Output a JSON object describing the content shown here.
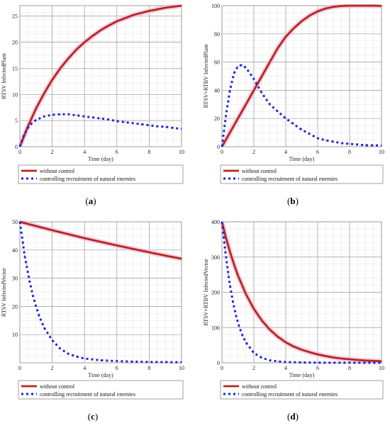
{
  "chart_data": [
    {
      "type": "line",
      "panel_label": "a",
      "ylabel": "RTSV InfectedPlant",
      "xlabel": "Time (day)",
      "xlim": [
        0,
        10
      ],
      "ylim": [
        0,
        27
      ],
      "xticks": [
        0,
        2,
        4,
        6,
        8,
        10
      ],
      "yticks": [
        0,
        5,
        10,
        15,
        20,
        25
      ],
      "grid": true,
      "legend_position": "below",
      "series": [
        {
          "name": "without control",
          "color": "#b5281e",
          "style": "solid",
          "x": [
            0,
            0.5,
            1,
            1.5,
            2,
            2.5,
            3,
            3.5,
            4,
            4.5,
            5,
            5.5,
            6,
            6.5,
            7,
            7.5,
            8,
            8.5,
            9,
            9.5,
            10
          ],
          "y": [
            0,
            3.9,
            7.3,
            10.2,
            12.8,
            15.0,
            16.9,
            18.6,
            20.0,
            21.2,
            22.3,
            23.2,
            24.0,
            24.6,
            25.2,
            25.6,
            26.0,
            26.3,
            26.6,
            26.8,
            27.0
          ]
        },
        {
          "name": "controlling recruitment of natural enemies",
          "color": "#1f25d6",
          "style": "dotted",
          "x": [
            0,
            0.25,
            0.5,
            0.75,
            1,
            1.5,
            2,
            2.5,
            3,
            3.5,
            4,
            4.5,
            5,
            5.5,
            6,
            6.5,
            7,
            7.5,
            8,
            8.5,
            9,
            9.5,
            10
          ],
          "y": [
            0,
            2.2,
            3.6,
            4.5,
            5.1,
            5.8,
            6.1,
            6.2,
            6.2,
            6.0,
            5.8,
            5.6,
            5.4,
            5.2,
            4.9,
            4.7,
            4.5,
            4.3,
            4.1,
            3.9,
            3.8,
            3.6,
            3.4
          ]
        }
      ]
    },
    {
      "type": "line",
      "panel_label": "b",
      "ylabel": "RTSV+RTBV InfectedPlant",
      "xlabel": "Time (day)",
      "xlim": [
        0,
        10
      ],
      "ylim": [
        0,
        100
      ],
      "xticks": [
        0,
        2,
        4,
        6,
        8,
        10
      ],
      "yticks": [
        0,
        20,
        40,
        60,
        80,
        100
      ],
      "grid": true,
      "legend_position": "below",
      "series": [
        {
          "name": "without control",
          "color": "#b5281e",
          "style": "solid",
          "x": [
            0,
            0.5,
            1,
            1.5,
            2,
            2.5,
            3,
            3.5,
            4,
            4.5,
            5,
            5.5,
            6,
            6.5,
            7,
            7.5,
            8,
            8.5,
            9,
            9.5,
            10
          ],
          "y": [
            0,
            10,
            20,
            30,
            40,
            50,
            60,
            70,
            78,
            84,
            89,
            93,
            96,
            98,
            99.2,
            99.8,
            100,
            100,
            100,
            100,
            99.8
          ]
        },
        {
          "name": "controlling recruitment of natural enemies",
          "color": "#1f25d6",
          "style": "dotted",
          "x": [
            0,
            0.25,
            0.5,
            0.75,
            1,
            1.25,
            1.5,
            2,
            2.5,
            3,
            3.5,
            4,
            4.5,
            5,
            5.5,
            6,
            6.5,
            7,
            7.5,
            8,
            8.5,
            9,
            9.5,
            10
          ],
          "y": [
            0,
            22,
            40,
            52,
            57,
            58,
            56,
            48,
            38,
            30,
            25,
            20,
            16,
            12,
            9,
            6,
            4.5,
            3.5,
            2.5,
            2,
            1.5,
            1,
            1,
            0.8
          ]
        }
      ]
    },
    {
      "type": "line",
      "panel_label": "c",
      "ylabel": "RTSV InfectedVector",
      "xlabel": "Time (day)",
      "xlim": [
        0,
        10
      ],
      "ylim": [
        0,
        50
      ],
      "xticks": [
        0,
        2,
        4,
        6,
        8,
        10
      ],
      "yticks": [
        10,
        20,
        30,
        40,
        50
      ],
      "grid": true,
      "legend_position": "below",
      "series": [
        {
          "name": "without control",
          "color": "#b5281e",
          "style": "solid",
          "x": [
            0,
            1,
            2,
            3,
            4,
            5,
            6,
            7,
            8,
            9,
            10
          ],
          "y": [
            50,
            48.5,
            47.0,
            45.6,
            44.2,
            42.9,
            41.6,
            40.4,
            39.2,
            38.0,
            36.9
          ]
        },
        {
          "name": "controlling recruitment of natural enemies",
          "color": "#1f25d6",
          "style": "dotted",
          "x": [
            0,
            0.1,
            0.2,
            0.3,
            0.4,
            0.5,
            0.6,
            0.8,
            1,
            1.2,
            1.5,
            2,
            2.5,
            3,
            3.5,
            4,
            5,
            6,
            7,
            8,
            9,
            10
          ],
          "y": [
            50,
            46,
            42,
            38,
            35,
            32,
            29,
            24,
            20,
            16.5,
            12.5,
            8,
            5,
            3.2,
            2.2,
            1.5,
            0.9,
            0.6,
            0.4,
            0.3,
            0.25,
            0.2
          ]
        }
      ]
    },
    {
      "type": "line",
      "panel_label": "d",
      "ylabel": "RTSV+RTBV InfectedVector",
      "xlabel": "Time (day)",
      "xlim": [
        0,
        10
      ],
      "ylim": [
        0,
        400
      ],
      "xticks": [
        0,
        2,
        4,
        6,
        8,
        10
      ],
      "yticks": [
        0,
        100,
        200,
        300,
        400
      ],
      "grid": true,
      "legend_position": "below",
      "series": [
        {
          "name": "without control",
          "color": "#b5281e",
          "style": "solid",
          "x": [
            0,
            0.25,
            0.5,
            0.75,
            1,
            1.5,
            2,
            2.5,
            3,
            3.5,
            4,
            4.5,
            5,
            5.5,
            6,
            6.5,
            7,
            7.5,
            8,
            8.5,
            9,
            9.5,
            10
          ],
          "y": [
            400,
            355,
            315,
            280,
            248,
            195,
            153,
            120,
            94,
            74,
            58,
            46,
            37,
            30,
            24,
            19,
            15,
            12,
            10,
            8,
            6.5,
            5.5,
            4.5
          ]
        },
        {
          "name": "controlling recruitment of natural enemies",
          "color": "#1f25d6",
          "style": "dotted",
          "x": [
            0,
            0.1,
            0.2,
            0.3,
            0.4,
            0.5,
            0.7,
            0.9,
            1.1,
            1.3,
            1.5,
            2,
            2.5,
            3,
            3.5,
            4,
            5,
            6,
            7,
            8,
            9,
            10
          ],
          "y": [
            400,
            360,
            320,
            285,
            250,
            220,
            170,
            130,
            100,
            76,
            58,
            28,
            14,
            7,
            4,
            2,
            1,
            0.5,
            0.3,
            0.2,
            0.1,
            0.1
          ]
        }
      ]
    }
  ]
}
